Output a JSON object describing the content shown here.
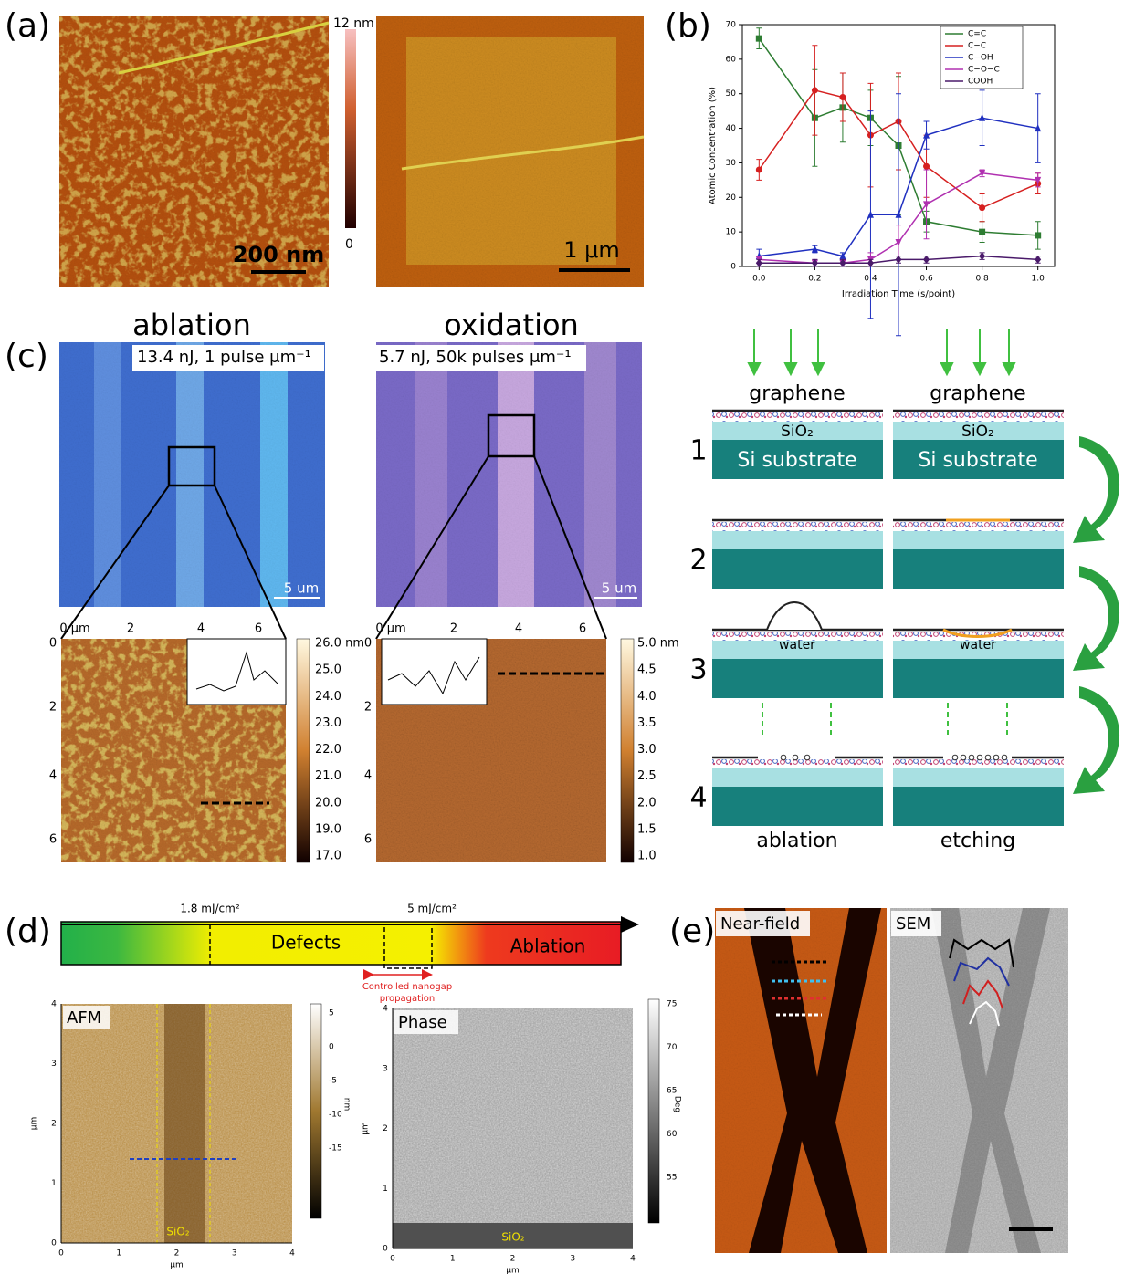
{
  "panel_a": {
    "label": "(a)",
    "colorbar_max": "12 nm",
    "colorbar_min": "0",
    "scale_bar_left": "200 nm",
    "scale_bar_right": "1 μm"
  },
  "panel_b": {
    "label": "(b)",
    "chart": {
      "type": "line",
      "ylabel": "Atomic Concentration (%)",
      "xlabel": "Irradiation Time (s/point)",
      "x": [
        0,
        0.2,
        0.3,
        0.4,
        0.5,
        0.6,
        0.8,
        1.0
      ],
      "xlim": [
        -0.06,
        1.06
      ],
      "xticks": [
        {
          "value": 0,
          "label": "0.0"
        },
        {
          "value": 0.2,
          "label": "0.2"
        },
        {
          "value": 0.4,
          "label": "0.4"
        },
        {
          "value": 0.6,
          "label": "0.6"
        },
        {
          "value": 0.8,
          "label": "0.8"
        },
        {
          "value": 1.0,
          "label": "1.0"
        }
      ],
      "ylim": [
        0,
        70
      ],
      "yticks": [
        0,
        10,
        20,
        30,
        40,
        50,
        60,
        70
      ],
      "series": [
        {
          "name": "C=C",
          "color": "#2e7d32",
          "marker": "square",
          "values": [
            66,
            43,
            46,
            43,
            35,
            13,
            10,
            9
          ],
          "errors": [
            3,
            14,
            10,
            8,
            20,
            3,
            3,
            4
          ]
        },
        {
          "name": "C−C",
          "color": "#d62020",
          "marker": "circle",
          "values": [
            28,
            51,
            49,
            38,
            42,
            29,
            17,
            24
          ],
          "errors": [
            3,
            13,
            7,
            15,
            14,
            9,
            4,
            3
          ]
        },
        {
          "name": "C−OH",
          "color": "#2030c0",
          "marker": "triangle",
          "values": [
            3,
            5,
            3,
            15,
            15,
            38,
            43,
            40
          ],
          "errors": [
            2,
            1,
            1,
            30,
            35,
            4,
            8,
            10
          ]
        },
        {
          "name": "C−O−C",
          "color": "#b030b0",
          "marker": "triangle-down",
          "values": [
            2,
            1,
            1,
            2,
            7,
            18,
            27,
            25
          ],
          "errors": [
            1,
            1,
            1,
            2,
            5,
            10,
            1,
            2
          ]
        },
        {
          "name": "COOH",
          "color": "#4a1a6a",
          "marker": "diamond",
          "values": [
            1,
            1,
            1,
            1,
            2,
            2,
            3,
            2
          ],
          "errors": [
            1,
            1,
            1,
            1,
            1,
            1,
            1,
            1
          ]
        }
      ]
    }
  },
  "panel_c": {
    "label": "(c)",
    "ablation": {
      "title": "ablation",
      "params": "13.4 nJ, 1 pulse μm⁻¹",
      "scale_bar": "5 um",
      "x_ticks": [
        "0 μm",
        "2",
        "4",
        "6"
      ],
      "y_ticks": [
        "0",
        "2",
        "4",
        "6"
      ],
      "colorbar": [
        "26.0 nm",
        "25.0",
        "24.0",
        "23.0",
        "22.0",
        "21.0",
        "20.0",
        "19.0",
        "17.0"
      ]
    },
    "oxidation": {
      "title": "oxidation",
      "params": "5.7 nJ, 50k pulses μm⁻¹",
      "scale_bar": "5 um",
      "x_ticks": [
        "0 μm",
        "2",
        "4",
        "6"
      ],
      "y_ticks": [
        "0",
        "2",
        "4",
        "6"
      ],
      "colorbar": [
        "5.0 nm",
        "4.5",
        "4.0",
        "3.5",
        "3.0",
        "2.5",
        "2.0",
        "1.5",
        "1.0"
      ]
    },
    "schematic": {
      "graphene": "graphene",
      "sio2": "SiO₂",
      "substrate": "Si substrate",
      "steps": [
        "1",
        "2",
        "3",
        "4"
      ],
      "water": "water",
      "bottom": [
        "ablation",
        "etching"
      ]
    }
  },
  "panel_d": {
    "label": "(d)",
    "fluence_low": "1.8 mJ/cm²",
    "fluence_high": "5 mJ/cm²",
    "defects": "Defects",
    "ablation": "Ablation",
    "nanogap": [
      "Controlled nanogap",
      "propagation"
    ],
    "afm": {
      "title": "AFM",
      "ticks": [
        "0",
        "1",
        "2",
        "3",
        "4"
      ],
      "unit": "μm",
      "sio2": "SiO₂",
      "colorbar": [
        "5",
        "0",
        "-5",
        "-10",
        "-15"
      ],
      "colorbar_unit": "nm"
    },
    "phase": {
      "title": "Phase",
      "ticks": [
        "0",
        "1",
        "2",
        "3",
        "4"
      ],
      "unit": "μm",
      "sio2": "SiO₂",
      "colorbar": [
        "75",
        "70",
        "65",
        "60",
        "55"
      ],
      "colorbar_unit": "Deg"
    }
  },
  "panel_e": {
    "label": "(e)",
    "near_field": "Near-field",
    "sem": "SEM"
  }
}
